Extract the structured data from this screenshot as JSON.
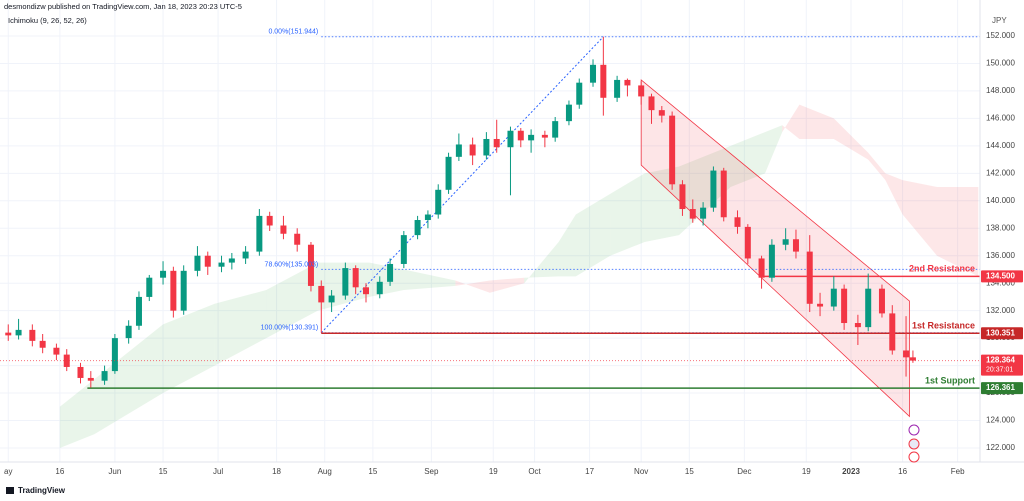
{
  "chart_data": {
    "type": "candlestick",
    "header": "desmondizw published on TradingView.com, Jan 18, 2023 20:23 UTC-5",
    "indicator": "Ichimoku (9, 26, 52, 26)",
    "y_axis_label": "JPY",
    "footer": "TradingView",
    "up_color": "#089981",
    "down_color": "#f23645",
    "x": [
      0,
      3,
      7,
      10,
      14,
      17,
      21,
      24,
      28,
      31,
      35,
      38,
      41,
      45,
      48,
      51,
      55,
      58,
      62,
      65,
      69,
      73,
      76,
      80,
      84,
      88,
      91,
      94,
      98,
      101,
      104,
      108,
      111,
      115,
      119,
      122,
      125,
      128,
      131,
      135,
      139,
      142,
      146,
      149,
      152,
      156,
      159,
      163,
      166,
      170,
      173,
      177,
      180,
      184,
      187,
      190,
      193,
      196,
      199,
      202,
      205,
      208,
      212,
      215,
      219,
      222,
      226,
      229,
      233,
      236,
      240,
      243,
      247,
      250,
      254,
      257,
      261,
      263
    ],
    "open": [
      130.4,
      130.2,
      130.6,
      129.8,
      129.3,
      128.8,
      127.9,
      127.1,
      126.9,
      127.6,
      130.0,
      130.9,
      133.0,
      134.4,
      134.9,
      132.0,
      134.9,
      136.0,
      135.2,
      135.5,
      135.8,
      136.3,
      138.9,
      138.2,
      137.6,
      136.8,
      133.8,
      132.6,
      133.1,
      135.1,
      133.7,
      133.2,
      134.1,
      135.4,
      137.5,
      138.6,
      139.0,
      140.8,
      143.2,
      144.1,
      143.3,
      144.5,
      143.9,
      145.1,
      144.4,
      144.8,
      144.6,
      145.8,
      147.0,
      148.6,
      149.9,
      147.5,
      148.8,
      148.4,
      147.6,
      146.6,
      146.2,
      141.2,
      139.4,
      138.7,
      139.5,
      142.2,
      138.8,
      138.1,
      135.8,
      134.4,
      136.8,
      137.2,
      136.3,
      132.5,
      132.3,
      133.6,
      131.1,
      130.8,
      133.6,
      131.8,
      129.1,
      128.6
    ],
    "high": [
      131.0,
      131.4,
      131.0,
      130.3,
      129.6,
      129.2,
      128.2,
      127.6,
      128.0,
      130.3,
      131.3,
      133.4,
      134.6,
      135.6,
      135.2,
      135.3,
      136.7,
      136.3,
      136.0,
      136.2,
      136.7,
      139.4,
      139.2,
      138.9,
      138.0,
      137.0,
      134.2,
      133.5,
      135.5,
      135.3,
      134.0,
      134.5,
      135.8,
      137.8,
      138.9,
      139.3,
      141.2,
      143.5,
      144.9,
      144.6,
      145.0,
      145.9,
      145.4,
      145.3,
      145.2,
      145.1,
      146.1,
      147.3,
      148.9,
      150.3,
      151.944,
      149.1,
      148.9,
      148.7,
      147.8,
      146.9,
      146.5,
      141.5,
      140.1,
      139.9,
      142.5,
      142.4,
      139.3,
      138.3,
      136.0,
      137.2,
      138.0,
      137.9,
      137.5,
      133.3,
      134.5,
      133.9,
      131.7,
      134.7,
      133.9,
      132.4,
      131.6,
      129.1
    ],
    "low": [
      129.8,
      129.9,
      129.4,
      128.9,
      128.4,
      127.6,
      126.7,
      126.4,
      126.6,
      127.4,
      129.6,
      130.6,
      132.7,
      133.9,
      131.5,
      131.7,
      134.5,
      134.6,
      134.8,
      135.0,
      135.4,
      136.0,
      137.8,
      137.2,
      136.3,
      133.4,
      130.391,
      131.9,
      132.8,
      133.2,
      132.6,
      132.9,
      133.8,
      135.1,
      137.2,
      138.0,
      138.7,
      140.5,
      142.9,
      142.6,
      143.0,
      143.5,
      140.4,
      143.9,
      143.5,
      143.9,
      144.3,
      145.5,
      146.7,
      148.3,
      146.2,
      147.2,
      147.6,
      147.0,
      145.6,
      145.7,
      140.8,
      138.9,
      138.4,
      138.2,
      139.2,
      138.5,
      137.6,
      135.4,
      133.6,
      134.1,
      136.4,
      135.8,
      131.9,
      131.6,
      132.0,
      130.6,
      129.5,
      130.5,
      131.5,
      128.8,
      127.2,
      128.2
    ],
    "close": [
      130.2,
      130.6,
      129.8,
      129.3,
      128.8,
      127.9,
      127.1,
      126.9,
      127.6,
      130.0,
      130.9,
      133.0,
      134.4,
      134.9,
      132.0,
      134.9,
      136.0,
      135.2,
      135.5,
      135.8,
      136.3,
      138.9,
      138.2,
      137.6,
      136.8,
      133.8,
      132.6,
      133.1,
      135.1,
      133.7,
      133.2,
      134.1,
      135.4,
      137.5,
      138.6,
      139.0,
      140.8,
      143.2,
      144.1,
      143.3,
      144.5,
      143.9,
      145.1,
      144.4,
      144.8,
      144.6,
      145.8,
      147.0,
      148.6,
      149.9,
      147.5,
      148.8,
      148.4,
      147.6,
      146.6,
      146.2,
      141.2,
      139.4,
      138.7,
      139.5,
      142.2,
      138.8,
      138.1,
      135.8,
      134.4,
      136.8,
      137.2,
      136.3,
      132.5,
      132.3,
      133.6,
      131.1,
      130.8,
      133.6,
      131.8,
      129.1,
      128.6,
      128.364
    ],
    "xlim": [
      -2.4,
      282.5
    ],
    "ylim": [
      120.98,
      154.62
    ],
    "xticks": [
      {
        "value": 0,
        "label": "ay"
      },
      {
        "value": 15,
        "label": "16"
      },
      {
        "value": 31,
        "label": "Jun"
      },
      {
        "value": 45,
        "label": "15"
      },
      {
        "value": 61,
        "label": "Jul"
      },
      {
        "value": 78,
        "label": "18"
      },
      {
        "value": 92,
        "label": "Aug"
      },
      {
        "value": 106,
        "label": "15"
      },
      {
        "value": 123,
        "label": "Sep"
      },
      {
        "value": 141,
        "label": "19"
      },
      {
        "value": 153,
        "label": "Oct"
      },
      {
        "value": 169,
        "label": "17"
      },
      {
        "value": 184,
        "label": "Nov"
      },
      {
        "value": 198,
        "label": "15"
      },
      {
        "value": 214,
        "label": "Dec"
      },
      {
        "value": 232,
        "label": "19"
      },
      {
        "value": 245,
        "label": "2023"
      },
      {
        "value": 260,
        "label": "16"
      },
      {
        "value": 276,
        "label": "Feb"
      }
    ],
    "yticks": [
      {
        "value": 122,
        "label": "122.000"
      },
      {
        "value": 124,
        "label": "124.000"
      },
      {
        "value": 126,
        "label": "126.000"
      },
      {
        "value": 128,
        "label": "128.000"
      },
      {
        "value": 130,
        "label": "130.000"
      },
      {
        "value": 132,
        "label": "132.000"
      },
      {
        "value": 134,
        "label": "134.000"
      },
      {
        "value": 136,
        "label": "136.000"
      },
      {
        "value": 138,
        "label": "138.000"
      },
      {
        "value": 140,
        "label": "140.000"
      },
      {
        "value": 142,
        "label": "142.000"
      },
      {
        "value": 144,
        "label": "144.000"
      },
      {
        "value": 146,
        "label": "146.000"
      },
      {
        "value": 148,
        "label": "148.000"
      },
      {
        "value": 150,
        "label": "150.000"
      },
      {
        "value": 152,
        "label": "152.000"
      }
    ],
    "cloud": {
      "up_color": "#4caf50",
      "down_color": "#f23645",
      "x": [
        15,
        25,
        35,
        45,
        60,
        75,
        90,
        105,
        115,
        130,
        140,
        150,
        160,
        165,
        175,
        185,
        195,
        210,
        220,
        225,
        230,
        240,
        250,
        255,
        260,
        270,
        282
      ],
      "span_a": [
        125,
        127,
        129,
        131,
        132.5,
        133.5,
        135.5,
        135.5,
        135,
        134.2,
        133.3,
        134,
        137,
        139,
        140.5,
        142,
        142.5,
        144,
        145,
        145.5,
        144.5,
        144.5,
        143,
        141.5,
        139,
        136,
        134.5
      ],
      "span_b": [
        122,
        123,
        124.5,
        126,
        128,
        130,
        132,
        133,
        133.5,
        133.8,
        134.2,
        134.4,
        134.5,
        134.5,
        136,
        137,
        137.5,
        141,
        142,
        145,
        147,
        146,
        143.5,
        142,
        141.5,
        141,
        141
      ]
    },
    "fib": {
      "color": "#2962ff",
      "x": [
        91,
        173
      ],
      "levels": [
        {
          "label": "0.00%(151.944)",
          "value": 151.944
        },
        {
          "label": "78.60%(135.003)",
          "value": 135.003
        },
        {
          "label": "100.00%(130.391)",
          "value": 130.391
        }
      ]
    },
    "channel": {
      "color": "#f23645",
      "x": [
        184,
        262
      ],
      "upper": [
        148.8,
        132.7
      ],
      "lower": [
        142.6,
        124.3
      ]
    },
    "levels": [
      {
        "label": "2nd Resistance",
        "value": 134.5,
        "value_label": "134.500",
        "color": "#f23645",
        "x_start": 219
      },
      {
        "label": "1st Resistance",
        "value": 130.351,
        "value_label": "130.351",
        "color": "#c62828",
        "x_start": 91
      },
      {
        "label": "1st Support",
        "value": 126.361,
        "value_label": "126.361",
        "color": "#2e7d32",
        "x_start": 23
      }
    ],
    "last_price": {
      "value": 128.364,
      "value_label": "128.364",
      "countdown": "20:37:01",
      "color": "#f23645"
    }
  }
}
